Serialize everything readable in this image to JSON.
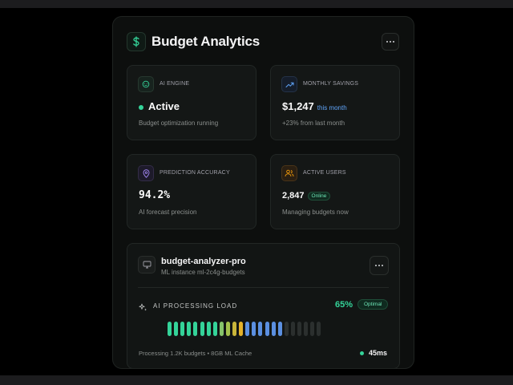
{
  "header": {
    "title": "Budget Analytics",
    "logo_icon": "dollar-icon",
    "menu_icon": "more-horizontal-icon"
  },
  "cards": {
    "ai_engine": {
      "label": "AI Engine",
      "value": "Active",
      "sub": "Budget optimization running",
      "icon": "bot-icon",
      "accent": "#34d399"
    },
    "savings": {
      "label": "Monthly Savings",
      "value": "$1,247",
      "period": "this month",
      "sub": "+23% from last month",
      "icon": "trending-up-icon",
      "accent": "#60a5fa"
    },
    "accuracy": {
      "label": "Prediction Accuracy",
      "value": "94.2%",
      "sub": "AI forecast precision",
      "icon": "target-icon",
      "accent": "#a78bfa"
    },
    "users": {
      "label": "Active Users",
      "value": "2,847",
      "badge": "Online",
      "sub": "Managing budgets now",
      "icon": "users-icon",
      "accent": "#f59e0b"
    }
  },
  "server": {
    "name": "budget-analyzer-pro",
    "instance": "ML instance ml-2c4g-budgets",
    "icon": "monitor-icon",
    "load_label": "AI Processing Load",
    "load_icon": "sparkles-icon",
    "load_percent": "65%",
    "load_value": 65,
    "load_badge": "Optimal",
    "footer": "Processing 1.2K budgets • 8GB ML Cache",
    "latency": "45ms",
    "bar_count": 24,
    "bar_colors": [
      "#34d399",
      "#34d399",
      "#34d399",
      "#34d399",
      "#34d399",
      "#34d399",
      "#34d399",
      "#34d399",
      "#86c36a",
      "#a3c04c",
      "#c8b53a",
      "#e5b22a",
      "#5b8fe0",
      "#5b8fe0",
      "#5b8fe0",
      "#5b8fe0",
      "#5b8fe0",
      "#5b8fe0",
      "#2b2f2e",
      "#2b2f2e",
      "#2b2f2e",
      "#2b2f2e",
      "#2b2f2e",
      "#2b2f2e"
    ]
  }
}
